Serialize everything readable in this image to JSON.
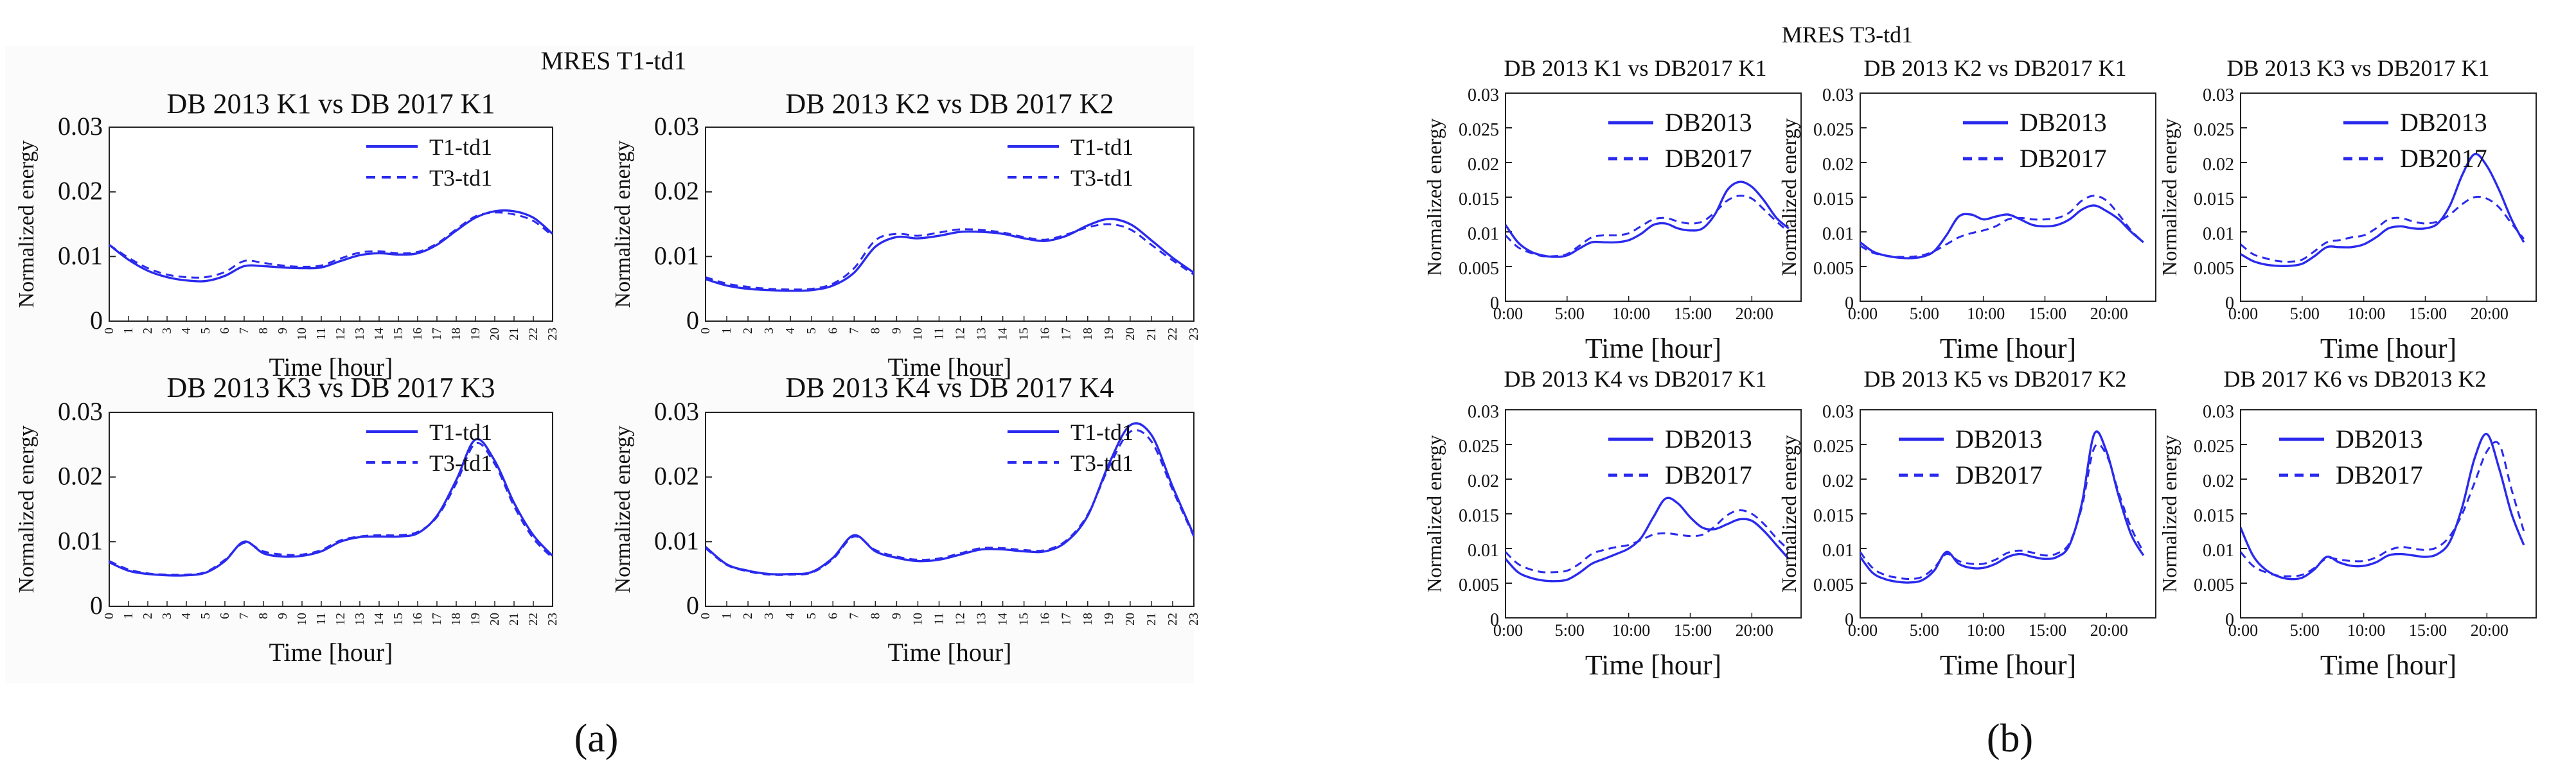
{
  "figure": {
    "panel_a": {
      "title": "MRES T1-td1",
      "label": "(a)",
      "ylabel": "Normalized energy",
      "xlabel": "Time [hour]",
      "yticks": [
        "0",
        "0.01",
        "0.02",
        "0.03"
      ]
    },
    "panel_b": {
      "title": "MRES T3-td1",
      "label": "(b)",
      "ylabel": "Normalized energy",
      "xlabel": "Time [hour]",
      "yticks": [
        "0",
        "0.005",
        "0.01",
        "0.015",
        "0.02",
        "0.025",
        "0.03"
      ],
      "xticks": [
        "0:00",
        "5:00",
        "10:00",
        "15:00",
        "20:00"
      ]
    }
  },
  "colors": {
    "line": "#2a2aee",
    "frame": "#222222"
  },
  "chart_data": [
    {
      "type": "line",
      "panel": "a",
      "title": "DB 2013 K1 vs DB 2017 K1",
      "xlabel": "Time [hour]",
      "ylabel": "Normalized energy",
      "ylim": [
        0,
        0.03
      ],
      "yticks": [
        0,
        0.01,
        0.02,
        0.03
      ],
      "x": [
        0,
        1,
        2,
        3,
        4,
        5,
        6,
        7,
        8,
        9,
        10,
        11,
        12,
        13,
        14,
        15,
        16,
        17,
        18,
        19,
        20,
        21,
        22,
        23
      ],
      "series": [
        {
          "name": "T1-td1",
          "dash": false,
          "values": [
            0.0118,
            0.0095,
            0.0078,
            0.0068,
            0.0063,
            0.0062,
            0.007,
            0.0085,
            0.0085,
            0.0083,
            0.0082,
            0.0083,
            0.0093,
            0.0102,
            0.0105,
            0.0103,
            0.0105,
            0.0118,
            0.014,
            0.016,
            0.017,
            0.017,
            0.016,
            0.0135
          ]
        },
        {
          "name": "T3-td1",
          "dash": true,
          "values": [
            0.0118,
            0.0098,
            0.0082,
            0.0072,
            0.0068,
            0.0068,
            0.0076,
            0.0093,
            0.009,
            0.0086,
            0.0084,
            0.0086,
            0.0097,
            0.0106,
            0.0108,
            0.0105,
            0.0107,
            0.012,
            0.0142,
            0.0162,
            0.0168,
            0.0165,
            0.0155,
            0.0132
          ]
        }
      ],
      "legend": "top-right"
    },
    {
      "type": "line",
      "panel": "a",
      "title": "DB 2013 K2 vs DB 2017 K2",
      "xlabel": "Time [hour]",
      "ylabel": "Normalized energy",
      "ylim": [
        0,
        0.03
      ],
      "yticks": [
        0,
        0.01,
        0.02,
        0.03
      ],
      "x": [
        0,
        1,
        2,
        3,
        4,
        5,
        6,
        7,
        8,
        9,
        10,
        11,
        12,
        13,
        14,
        15,
        16,
        17,
        18,
        19,
        20,
        21,
        22,
        23
      ],
      "series": [
        {
          "name": "T1-td1",
          "dash": false,
          "values": [
            0.0065,
            0.0055,
            0.005,
            0.0048,
            0.0047,
            0.0048,
            0.0055,
            0.0075,
            0.0115,
            0.013,
            0.0128,
            0.0132,
            0.0138,
            0.0138,
            0.0135,
            0.0128,
            0.0124,
            0.0132,
            0.0148,
            0.0158,
            0.015,
            0.0125,
            0.0098,
            0.0075
          ]
        },
        {
          "name": "T3-td1",
          "dash": true,
          "values": [
            0.0068,
            0.0058,
            0.0053,
            0.005,
            0.0049,
            0.005,
            0.0058,
            0.0082,
            0.0125,
            0.0135,
            0.0132,
            0.0137,
            0.0142,
            0.0141,
            0.0137,
            0.013,
            0.0126,
            0.0134,
            0.0145,
            0.015,
            0.0142,
            0.0118,
            0.0094,
            0.0072
          ]
        }
      ],
      "legend": "top-right"
    },
    {
      "type": "line",
      "panel": "a",
      "title": "DB 2013 K3 vs DB 2017 K3",
      "xlabel": "Time [hour]",
      "ylabel": "Normalized energy",
      "ylim": [
        0,
        0.03
      ],
      "yticks": [
        0,
        0.01,
        0.02,
        0.03
      ],
      "x": [
        0,
        1,
        2,
        3,
        4,
        5,
        6,
        7,
        8,
        9,
        10,
        11,
        12,
        13,
        14,
        15,
        16,
        17,
        18,
        19,
        20,
        21,
        22,
        23
      ],
      "series": [
        {
          "name": "T1-td1",
          "dash": false,
          "values": [
            0.0068,
            0.0055,
            0.005,
            0.0048,
            0.0048,
            0.0052,
            0.007,
            0.01,
            0.0082,
            0.0077,
            0.0078,
            0.0085,
            0.01,
            0.0107,
            0.0108,
            0.0108,
            0.0113,
            0.014,
            0.0195,
            0.0258,
            0.0225,
            0.016,
            0.011,
            0.0078
          ]
        },
        {
          "name": "T3-td1",
          "dash": true,
          "values": [
            0.007,
            0.0057,
            0.0051,
            0.0049,
            0.0049,
            0.0053,
            0.0072,
            0.0098,
            0.0085,
            0.008,
            0.008,
            0.0087,
            0.0102,
            0.0108,
            0.011,
            0.011,
            0.0115,
            0.0138,
            0.019,
            0.0252,
            0.022,
            0.0155,
            0.0105,
            0.0075
          ]
        }
      ],
      "legend": "top-right"
    },
    {
      "type": "line",
      "panel": "a",
      "title": "DB 2013 K4 vs DB 2017 K4",
      "xlabel": "Time [hour]",
      "ylabel": "Normalized energy",
      "ylim": [
        0,
        0.03
      ],
      "yticks": [
        0,
        0.01,
        0.02,
        0.03
      ],
      "x": [
        0,
        1,
        2,
        3,
        4,
        5,
        6,
        7,
        8,
        9,
        10,
        11,
        12,
        13,
        14,
        15,
        16,
        17,
        18,
        19,
        20,
        21,
        22,
        23
      ],
      "series": [
        {
          "name": "T1-td1",
          "dash": false,
          "values": [
            0.0092,
            0.0065,
            0.0055,
            0.005,
            0.005,
            0.0053,
            0.0075,
            0.011,
            0.0085,
            0.0075,
            0.007,
            0.0072,
            0.008,
            0.0088,
            0.0088,
            0.0085,
            0.0085,
            0.01,
            0.014,
            0.022,
            0.028,
            0.0265,
            0.0185,
            0.011
          ]
        },
        {
          "name": "T3-td1",
          "dash": true,
          "values": [
            0.009,
            0.0064,
            0.0054,
            0.0049,
            0.0049,
            0.0052,
            0.0073,
            0.0108,
            0.0087,
            0.0077,
            0.0072,
            0.0074,
            0.0082,
            0.009,
            0.009,
            0.0087,
            0.0087,
            0.0102,
            0.0142,
            0.0215,
            0.027,
            0.0255,
            0.018,
            0.0108
          ]
        }
      ],
      "legend": "top-right"
    },
    {
      "type": "line",
      "panel": "b",
      "title": "DB 2013 K1 vs DB2017 K1",
      "xlabel": "Time [hour]",
      "ylabel": "Normalized energy",
      "ylim": [
        0,
        0.03
      ],
      "yticks": [
        0,
        0.005,
        0.01,
        0.015,
        0.02,
        0.025,
        0.03
      ],
      "x": [
        0,
        1,
        2,
        3,
        4,
        5,
        6,
        7,
        8,
        9,
        10,
        11,
        12,
        13,
        14,
        15,
        16,
        17,
        18,
        19,
        20,
        21,
        22,
        23
      ],
      "series": [
        {
          "name": "DB2013",
          "dash": false,
          "values": [
            0.011,
            0.0085,
            0.0072,
            0.0066,
            0.0064,
            0.0066,
            0.0076,
            0.0085,
            0.0085,
            0.0085,
            0.0088,
            0.0097,
            0.011,
            0.0112,
            0.0105,
            0.0102,
            0.0105,
            0.0125,
            0.016,
            0.0172,
            0.0165,
            0.0145,
            0.012,
            0.0105
          ]
        },
        {
          "name": "DB2017",
          "dash": true,
          "values": [
            0.0095,
            0.0078,
            0.007,
            0.0065,
            0.0065,
            0.0068,
            0.008,
            0.0092,
            0.0095,
            0.0095,
            0.0098,
            0.0108,
            0.0118,
            0.012,
            0.0115,
            0.0112,
            0.0115,
            0.0128,
            0.0145,
            0.0152,
            0.0148,
            0.0132,
            0.0115,
            0.01
          ]
        }
      ],
      "legend": "top-right"
    },
    {
      "type": "line",
      "panel": "b",
      "title": "DB 2013 K2 vs DB2017 K1",
      "xlabel": "Time [hour]",
      "ylabel": "Normalized energy",
      "ylim": [
        0,
        0.03
      ],
      "yticks": [
        0,
        0.005,
        0.01,
        0.015,
        0.02,
        0.025,
        0.03
      ],
      "x": [
        0,
        1,
        2,
        3,
        4,
        5,
        6,
        7,
        8,
        9,
        10,
        11,
        12,
        13,
        14,
        15,
        16,
        17,
        18,
        19,
        20,
        21,
        22,
        23
      ],
      "series": [
        {
          "name": "DB2013",
          "dash": false,
          "values": [
            0.0085,
            0.0072,
            0.0066,
            0.0063,
            0.0062,
            0.0064,
            0.0072,
            0.0095,
            0.0122,
            0.0125,
            0.0118,
            0.0122,
            0.0125,
            0.0118,
            0.011,
            0.0108,
            0.011,
            0.0118,
            0.0132,
            0.0138,
            0.013,
            0.0118,
            0.01,
            0.0085
          ]
        },
        {
          "name": "DB2017",
          "dash": true,
          "values": [
            0.008,
            0.007,
            0.0066,
            0.0064,
            0.0064,
            0.0066,
            0.0072,
            0.0082,
            0.0092,
            0.0098,
            0.0102,
            0.0108,
            0.0118,
            0.012,
            0.0118,
            0.0118,
            0.012,
            0.0128,
            0.0145,
            0.0152,
            0.0145,
            0.0125,
            0.0102,
            0.0085
          ]
        }
      ],
      "legend": "top-right"
    },
    {
      "type": "line",
      "panel": "b",
      "title": "DB 2013 K3 vs DB2017 K1",
      "xlabel": "Time [hour]",
      "ylabel": "Normalized energy",
      "ylim": [
        0,
        0.03
      ],
      "yticks": [
        0,
        0.005,
        0.01,
        0.015,
        0.02,
        0.025,
        0.03
      ],
      "x": [
        0,
        1,
        2,
        3,
        4,
        5,
        6,
        7,
        8,
        9,
        10,
        11,
        12,
        13,
        14,
        15,
        16,
        17,
        18,
        19,
        20,
        21,
        22,
        23
      ],
      "series": [
        {
          "name": "DB2013",
          "dash": false,
          "values": [
            0.0068,
            0.0058,
            0.0053,
            0.0051,
            0.0051,
            0.0054,
            0.0065,
            0.0078,
            0.0078,
            0.0078,
            0.0082,
            0.0092,
            0.0105,
            0.0108,
            0.0105,
            0.0105,
            0.0112,
            0.0138,
            0.0182,
            0.0212,
            0.0195,
            0.016,
            0.0118,
            0.0085
          ]
        },
        {
          "name": "DB2017",
          "dash": true,
          "values": [
            0.0082,
            0.0068,
            0.0062,
            0.0058,
            0.0057,
            0.006,
            0.0072,
            0.0085,
            0.0088,
            0.0092,
            0.0095,
            0.0105,
            0.0118,
            0.012,
            0.0115,
            0.0112,
            0.0115,
            0.0125,
            0.014,
            0.015,
            0.0148,
            0.0135,
            0.0112,
            0.009
          ]
        }
      ],
      "legend": "top-right"
    },
    {
      "type": "line",
      "panel": "b",
      "title": "DB 2013 K4 vs DB2017 K1",
      "xlabel": "Time [hour]",
      "ylabel": "Normalized energy",
      "ylim": [
        0,
        0.03
      ],
      "yticks": [
        0,
        0.005,
        0.01,
        0.015,
        0.02,
        0.025,
        0.03
      ],
      "x": [
        0,
        1,
        2,
        3,
        4,
        5,
        6,
        7,
        8,
        9,
        10,
        11,
        12,
        13,
        14,
        15,
        16,
        17,
        18,
        19,
        20,
        21,
        22,
        23
      ],
      "series": [
        {
          "name": "DB2013",
          "dash": false,
          "values": [
            0.0085,
            0.0066,
            0.0058,
            0.0054,
            0.0053,
            0.0055,
            0.0065,
            0.0078,
            0.0085,
            0.0092,
            0.01,
            0.0115,
            0.0145,
            0.0172,
            0.0165,
            0.0145,
            0.013,
            0.0128,
            0.0135,
            0.0142,
            0.014,
            0.0125,
            0.0105,
            0.0085
          ]
        },
        {
          "name": "DB2017",
          "dash": true,
          "values": [
            0.0095,
            0.0078,
            0.007,
            0.0066,
            0.0066,
            0.0068,
            0.0078,
            0.0092,
            0.0098,
            0.0102,
            0.0105,
            0.0112,
            0.012,
            0.0122,
            0.012,
            0.0118,
            0.012,
            0.0132,
            0.0148,
            0.0155,
            0.015,
            0.0135,
            0.0115,
            0.0098
          ]
        }
      ],
      "legend": "top-right"
    },
    {
      "type": "line",
      "panel": "b",
      "title": "DB 2013 K5 vs DB2017 K2",
      "xlabel": "Time [hour]",
      "ylabel": "Normalized energy",
      "ylim": [
        0,
        0.03
      ],
      "yticks": [
        0,
        0.005,
        0.01,
        0.015,
        0.02,
        0.025,
        0.03
      ],
      "x": [
        0,
        1,
        2,
        3,
        4,
        5,
        6,
        7,
        8,
        9,
        10,
        11,
        12,
        13,
        14,
        15,
        16,
        17,
        18,
        19,
        20,
        21,
        22,
        23
      ],
      "series": [
        {
          "name": "DB2013",
          "dash": false,
          "values": [
            0.0088,
            0.0065,
            0.0056,
            0.0052,
            0.0051,
            0.0054,
            0.0068,
            0.0095,
            0.0078,
            0.0072,
            0.0072,
            0.0078,
            0.0088,
            0.0092,
            0.0088,
            0.0085,
            0.0088,
            0.0105,
            0.0165,
            0.0265,
            0.024,
            0.0175,
            0.012,
            0.009
          ]
        },
        {
          "name": "DB2017",
          "dash": true,
          "values": [
            0.0095,
            0.0072,
            0.0062,
            0.0058,
            0.0056,
            0.0059,
            0.0072,
            0.0092,
            0.0082,
            0.0078,
            0.0078,
            0.0084,
            0.0094,
            0.0097,
            0.0094,
            0.009,
            0.0093,
            0.0108,
            0.016,
            0.0245,
            0.0235,
            0.018,
            0.013,
            0.0095
          ]
        }
      ],
      "legend": "top-left"
    },
    {
      "type": "line",
      "panel": "b",
      "title": "DB 2017 K6 vs DB2013 K2",
      "xlabel": "Time [hour]",
      "ylabel": "Normalized energy",
      "ylim": [
        0,
        0.03
      ],
      "yticks": [
        0,
        0.005,
        0.01,
        0.015,
        0.02,
        0.025,
        0.03
      ],
      "x": [
        0,
        1,
        2,
        3,
        4,
        5,
        6,
        7,
        8,
        9,
        10,
        11,
        12,
        13,
        14,
        15,
        16,
        17,
        18,
        19,
        20,
        21,
        22,
        23
      ],
      "series": [
        {
          "name": "DB2013",
          "dash": false,
          "values": [
            0.013,
            0.009,
            0.007,
            0.006,
            0.0056,
            0.0058,
            0.007,
            0.0088,
            0.008,
            0.0075,
            0.0075,
            0.008,
            0.009,
            0.0092,
            0.009,
            0.0088,
            0.0092,
            0.011,
            0.016,
            0.023,
            0.0265,
            0.0215,
            0.015,
            0.0105
          ]
        },
        {
          "name": "DB2017",
          "dash": true,
          "values": [
            0.0095,
            0.0075,
            0.0066,
            0.0061,
            0.006,
            0.0062,
            0.0072,
            0.0086,
            0.0084,
            0.0082,
            0.0082,
            0.0087,
            0.0097,
            0.0102,
            0.01,
            0.0098,
            0.0102,
            0.0118,
            0.015,
            0.0195,
            0.024,
            0.025,
            0.0185,
            0.0125
          ]
        }
      ],
      "legend": "top-left"
    }
  ]
}
